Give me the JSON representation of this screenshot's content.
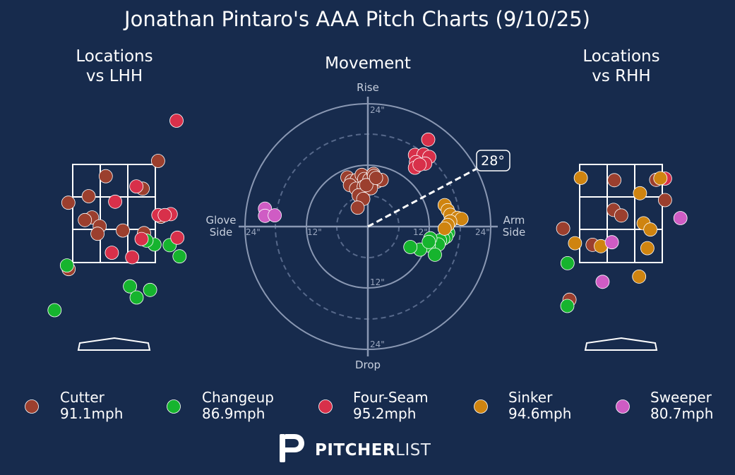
{
  "title": "Jonathan Pintaro's AAA Pitch Charts (9/10/25)",
  "panels": {
    "lhh": {
      "title_line1": "Locations",
      "title_line2": "vs LHH"
    },
    "movement": {
      "title": "Movement",
      "label_top": "Rise",
      "label_bottom": "Drop",
      "label_left_line1": "Glove",
      "label_left_line2": "Side",
      "label_right_line1": "Arm",
      "label_right_line2": "Side",
      "ring_labels": {
        "inner": "12\"",
        "outer": "24\""
      },
      "arm_angle_label": "28°",
      "arm_angle_deg": 28
    },
    "rhh": {
      "title_line1": "Locations",
      "title_line2": "vs RHH"
    }
  },
  "legend": [
    {
      "pitch": "Cutter",
      "speed": "91.1mph"
    },
    {
      "pitch": "Changeup",
      "speed": "86.9mph"
    },
    {
      "pitch": "Four-Seam",
      "speed": "95.2mph"
    },
    {
      "pitch": "Sinker",
      "speed": "94.6mph"
    },
    {
      "pitch": "Sweeper",
      "speed": "80.7mph"
    }
  ],
  "brand": {
    "bold": "PITCHER",
    "light": "LIST"
  },
  "colors": {
    "background": "#172b4d",
    "Cutter": "#9b3f2e",
    "Changeup": "#16b42e",
    "Four-Seam": "#d8304a",
    "Sinker": "#cf8410",
    "Sweeper": "#cf5cc4"
  },
  "chart_data": [
    {
      "type": "scatter",
      "title": "Locations vs LHH",
      "x_unit": "zone widths (horizontal location relative to plate center, positive = right)",
      "y_unit": "zone heights (vertical location relative to zone center, positive = up)",
      "zone": "3x3 strike zone grid",
      "series": [
        {
          "name": "Cutter",
          "points": [
            [
              -0.3,
              1.14
            ],
            [
              1.6,
              1.61
            ],
            [
              -0.92,
              0.53
            ],
            [
              -1.66,
              0.33
            ],
            [
              -0.8,
              -0.12
            ],
            [
              -1.06,
              -0.2
            ],
            [
              -0.52,
              -0.39
            ],
            [
              -0.6,
              -0.62
            ],
            [
              0.32,
              -0.52
            ],
            [
              1.04,
              0.76
            ],
            [
              1.7,
              -0.1
            ],
            [
              1.09,
              -0.6
            ],
            [
              -1.65,
              -1.7
            ]
          ]
        },
        {
          "name": "Changeup",
          "points": [
            [
              1.47,
              -0.95
            ],
            [
              2.02,
              -0.97
            ],
            [
              -1.71,
              -1.59
            ],
            [
              0.58,
              -2.23
            ],
            [
              1.31,
              -2.34
            ],
            [
              0.82,
              -2.57
            ],
            [
              -2.16,
              -2.96
            ],
            [
              1.18,
              -0.83
            ],
            [
              2.38,
              -1.31
            ]
          ]
        },
        {
          "name": "Four-Seam",
          "points": [
            [
              2.27,
              2.84
            ],
            [
              0.81,
              0.83
            ],
            [
              0.04,
              0.36
            ],
            [
              1.61,
              -0.05
            ],
            [
              2.06,
              -0.02
            ],
            [
              1.84,
              -0.05
            ],
            [
              2.3,
              -0.74
            ],
            [
              1.0,
              -0.78
            ],
            [
              -0.08,
              -1.2
            ],
            [
              0.66,
              -1.34
            ]
          ]
        }
      ]
    },
    {
      "type": "scatter",
      "title": "Movement",
      "x_unit": "inches of horizontal break (negative = glove side, positive = arm side)",
      "y_unit": "inches of induced vertical break (positive = rise)",
      "rings": [
        6,
        12,
        18,
        24
      ],
      "xlim": [
        -24,
        24
      ],
      "ylim": [
        -24,
        24
      ],
      "arm_angle_deg": 28,
      "series": [
        {
          "name": "Cutter",
          "points": [
            [
              -4,
              9.6
            ],
            [
              -3.2,
              8.9
            ],
            [
              -2.2,
              9.1
            ],
            [
              -1.2,
              10.1
            ],
            [
              -0.7,
              9.3
            ],
            [
              0.3,
              9.2
            ],
            [
              1.1,
              10.3
            ],
            [
              1.8,
              8.8
            ],
            [
              2.7,
              9.1
            ],
            [
              -3.5,
              8.1
            ],
            [
              -2.3,
              7.4
            ],
            [
              -0.8,
              7.8
            ],
            [
              0.6,
              7.5
            ],
            [
              -1.8,
              6.1
            ],
            [
              -0.9,
              5.4
            ],
            [
              -2.0,
              3.7
            ],
            [
              1.2,
              9.9
            ],
            [
              -0.3,
              8.1
            ],
            [
              1.6,
              9.5
            ]
          ]
        },
        {
          "name": "Changeup",
          "points": [
            [
              15.7,
              -1.2
            ],
            [
              15.3,
              -2.0
            ],
            [
              14.7,
              -2.4
            ],
            [
              14.1,
              -2.7
            ],
            [
              13.8,
              -3.5
            ],
            [
              12.2,
              -2.3
            ],
            [
              11.9,
              -3.7
            ],
            [
              10.2,
              -4.5
            ],
            [
              8.3,
              -4.0
            ],
            [
              13.1,
              -5.5
            ],
            [
              11.9,
              -3.0
            ]
          ]
        },
        {
          "name": "Four-Seam",
          "points": [
            [
              11.8,
              17.0
            ],
            [
              9.2,
              14.0
            ],
            [
              10.9,
              14.1
            ],
            [
              12.0,
              13.6
            ],
            [
              9.4,
              12.6
            ],
            [
              11.2,
              12.3
            ],
            [
              9.2,
              11.5
            ],
            [
              10.1,
              12.1
            ]
          ]
        },
        {
          "name": "Sinker",
          "points": [
            [
              15.0,
              4.2
            ],
            [
              15.6,
              3.2
            ],
            [
              16.1,
              2.3
            ],
            [
              17.5,
              1.7
            ],
            [
              18.3,
              1.5
            ],
            [
              16.1,
              1.0
            ],
            [
              15.6,
              0.3
            ],
            [
              15.0,
              -0.4
            ]
          ]
        },
        {
          "name": "Sweeper",
          "points": [
            [
              -20.1,
              3.5
            ],
            [
              -20.1,
              2.1
            ],
            [
              -18.2,
              2.2
            ]
          ]
        }
      ]
    },
    {
      "type": "scatter",
      "title": "Locations vs RHH",
      "x_unit": "zone widths (horizontal location relative to plate center, positive = right)",
      "y_unit": "zone heights (vertical location relative to zone center, positive = up)",
      "zone": "3x3 strike zone grid",
      "series": [
        {
          "name": "Cutter",
          "points": [
            [
              -0.24,
              1.02
            ],
            [
              1.28,
              1.03
            ],
            [
              1.6,
              0.41
            ],
            [
              -0.27,
              0.11
            ],
            [
              0.01,
              -0.06
            ],
            [
              -2.1,
              -0.46
            ],
            [
              -1.03,
              -0.96
            ],
            [
              -1.87,
              -2.64
            ]
          ]
        },
        {
          "name": "Changeup",
          "points": [
            [
              -1.94,
              -1.52
            ],
            [
              -1.95,
              -2.83
            ]
          ]
        },
        {
          "name": "Four-Seam",
          "points": [
            [
              1.6,
              1.07
            ]
          ]
        },
        {
          "name": "Sinker",
          "points": [
            [
              -1.46,
              1.09
            ],
            [
              0.69,
              0.62
            ],
            [
              1.43,
              1.08
            ],
            [
              0.82,
              -0.3
            ],
            [
              1.07,
              -0.49
            ],
            [
              -1.67,
              -0.91
            ],
            [
              -0.73,
              -1.0
            ],
            [
              0.96,
              -1.06
            ],
            [
              0.66,
              -1.93
            ]
          ]
        },
        {
          "name": "Sweeper",
          "points": [
            [
              2.16,
              -0.14
            ],
            [
              -0.33,
              -0.88
            ],
            [
              -0.67,
              -2.09
            ]
          ]
        }
      ]
    }
  ]
}
